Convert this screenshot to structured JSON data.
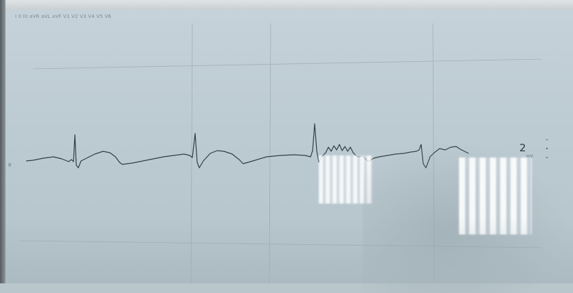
{
  "app": {
    "header_text": "I  II  III  aVR  aVL  aVF  V1  V2  V3  V4  V5  V6"
  },
  "monitor": {
    "lead_label": "II",
    "gain_value": "2",
    "gain_unit": "mV",
    "scroll_up_icon": "chevron-up-icon",
    "scroll_down_icon": "chevron-down-icon",
    "colors": {
      "trace": "#2f3d44",
      "grid": "#95a4ac",
      "screen": "#c2ced5"
    }
  }
}
